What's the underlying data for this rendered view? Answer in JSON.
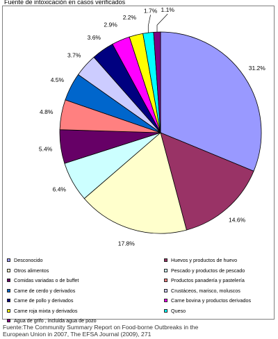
{
  "chart_data": {
    "type": "pie",
    "title": "Fuente de intoxicación en casos verificados",
    "slices": [
      {
        "label": "Desconocido",
        "value": 31.2,
        "value_label": "31.2%",
        "color": "#9999ff"
      },
      {
        "label": "Huevos y productos de huevo",
        "value": 14.6,
        "value_label": "14.6%",
        "color": "#993366"
      },
      {
        "label": "Otros alimentos",
        "value": 17.8,
        "value_label": "17.8%",
        "color": "#ffffcc"
      },
      {
        "label": "Pescado y productos de pescado",
        "value": 6.4,
        "value_label": "6.4%",
        "color": "#ccffff"
      },
      {
        "label": "Comidas variadas o de buffet",
        "value": 5.4,
        "value_label": "5.4%",
        "color": "#660066"
      },
      {
        "label": "Productos panadería y pastelería",
        "value": 4.8,
        "value_label": "4.8%",
        "color": "#ff8080"
      },
      {
        "label": "Carne de cerdo y derivados",
        "value": 4.5,
        "value_label": "4.5%",
        "color": "#0066cc"
      },
      {
        "label": "Crustáceos, marisco, moluscos",
        "value": 3.7,
        "value_label": "3.7%",
        "color": "#ccccff"
      },
      {
        "label": "Carne de pollo y derivados",
        "value": 3.6,
        "value_label": "3.6%",
        "color": "#000080"
      },
      {
        "label": "Carne bovina y productos derivados",
        "value": 2.9,
        "value_label": "2.9%",
        "color": "#ff00ff"
      },
      {
        "label": "Carne roja mixta y derivados",
        "value": 2.2,
        "value_label": "2.2%",
        "color": "#ffff00"
      },
      {
        "label": "Queso",
        "value": 1.7,
        "value_label": "1.7%",
        "color": "#00ffff"
      },
      {
        "label": "Agua de grifo , incluida agua de pozo",
        "value": 1.1,
        "value_label": "1.1%",
        "color": "#800080"
      }
    ],
    "legend_placement": "bottom",
    "legend_order": [
      "Desconocido",
      "Otros alimentos",
      "Comidas variadas o de buffet",
      "Carne de cerdo y derivados",
      "Carne de pollo y derivados",
      "Carne roja mixta y derivados",
      "Agua de grifo , incluida agua de pozo",
      "Huevos y productos de huevo",
      "Pescado y productos de pescado",
      "Productos panadería y pastelería",
      "Crustáceos, marisco, moluscos",
      "Carne bovina y productos derivados",
      "Queso"
    ]
  },
  "source": {
    "line1": "Fuente:The Community Summary Report on Food-borne Outbreaks in the",
    "line2": "European Union in 2007, The EFSA Journal (2009), 271"
  }
}
